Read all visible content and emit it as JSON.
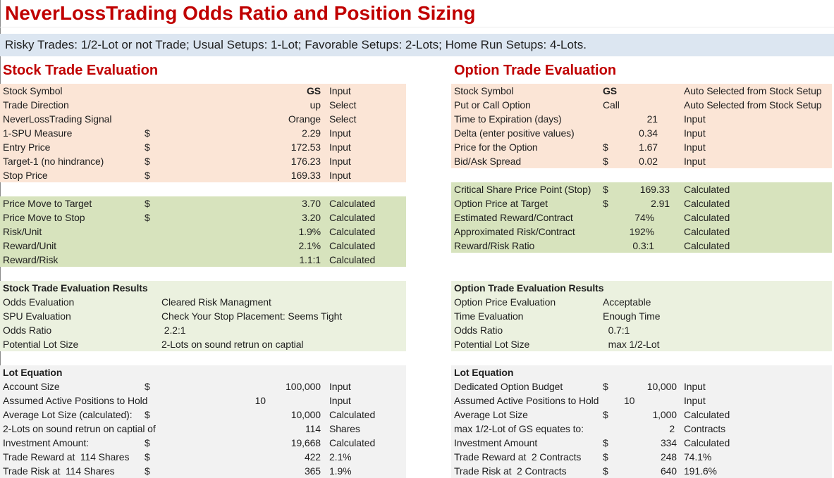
{
  "title": "NeverLossTrading Odds Ratio and Position Sizing",
  "subtitle": "Risky Trades: 1/2-Lot or not Trade; Usual Setups: 1-Lot; Favorable Setups: 2-Lots; Home Run Setups: 4-Lots.",
  "colors": {
    "accent_red": "#c00000",
    "subtitle_bar_bg": "#dce6f1",
    "input_block_bg": "#fbe5d6",
    "calculated_block_bg": "#d7e3bd",
    "results_block_bg": "#ebf1df",
    "lot_block_bg": "#f2f2f2",
    "text": "#1f1f1f"
  },
  "stock": {
    "header": "Stock Trade Evaluation",
    "inputs": {
      "rows": [
        {
          "label": "Stock Symbol",
          "value": "GS",
          "bold_value": true,
          "status": "Input"
        },
        {
          "label": "Trade Direction",
          "value": "up",
          "status": "Select"
        },
        {
          "label": "NeverLossTrading Signal",
          "value": "Orange",
          "status": "Select"
        },
        {
          "label": "1-SPU Measure",
          "mid": "$",
          "value": "2.29",
          "status": "Input"
        },
        {
          "label": "Entry Price",
          "mid": "$",
          "value": "172.53",
          "status": "Input"
        },
        {
          "label": "Target-1 (no hindrance)",
          "mid": "$",
          "value": "176.23",
          "status": "Input"
        },
        {
          "label": "Stop Price",
          "mid": "$",
          "value": "169.33",
          "status": "Input"
        }
      ]
    },
    "calculated": {
      "rows": [
        {
          "label": "Price Move to Target",
          "mid": "$",
          "value": "3.70",
          "status": "Calculated"
        },
        {
          "label": "Price Move to Stop",
          "mid": "$",
          "value": "3.20",
          "status": "Calculated"
        },
        {
          "label": "Risk/Unit",
          "value": "1.9%",
          "status": "Calculated"
        },
        {
          "label": "Reward/Unit",
          "value": "2.1%",
          "status": "Calculated"
        },
        {
          "label": "Reward/Risk",
          "value": "1.1:1",
          "status": "Calculated"
        }
      ]
    },
    "results": {
      "header": "Stock Trade Evaluation Results",
      "rows": [
        {
          "label": "Odds Evaluation",
          "value": "Cleared Risk Managment"
        },
        {
          "label": "SPU Evaluation",
          "value": "Check Your Stop Placement: Seems Tight"
        },
        {
          "label": "Odds Ratio",
          "value": " 2.2:1"
        },
        {
          "label": "Potential Lot Size",
          "value": "2-Lots on sound retrun on captial"
        }
      ]
    },
    "lot": {
      "header": "Lot Equation",
      "rows": [
        {
          "label": "Account Size",
          "mid": "$",
          "value": "100,000",
          "status": "Input"
        },
        {
          "label": "Assumed Active Positions to Hold",
          "value": "10",
          "status": "Input",
          "pad": 78
        },
        {
          "label": "Average Lot Size (calculated):",
          "mid": "$",
          "value": "10,000",
          "status": "Calculated"
        },
        {
          "label": "2-Lots on sound retrun on captial of",
          "value": "114",
          "status": "Shares"
        },
        {
          "label": "Investment Amount:",
          "mid": "$",
          "value": "19,668",
          "status": "Calculated"
        },
        {
          "label": "Trade Reward at  114 Shares",
          "mid": "$",
          "value": "422",
          "status": "2.1%"
        },
        {
          "label": "Trade Risk at  114 Shares",
          "mid": "$",
          "value": "365",
          "status": "1.9%"
        }
      ]
    }
  },
  "option": {
    "header": "Option Trade Evaluation",
    "inputs": {
      "rows": [
        {
          "label": "Stock Symbol",
          "mid": "GS",
          "bold_mid": true,
          "status": "Auto Selected from Stock Setup"
        },
        {
          "label": "Put or Call Option",
          "mid": "Call",
          "status": "Auto Selected from Stock Setup"
        },
        {
          "label": "Time to Expiration (days)",
          "value": "21",
          "status": "Input",
          "pad": 27
        },
        {
          "label": "Delta (enter positive values)",
          "value": "0.34",
          "status": "Input",
          "pad": 27
        },
        {
          "label": "Price for the Option",
          "mid": "$",
          "value": "1.67",
          "status": "Input",
          "pad": 27
        },
        {
          "label": "Bid/Ask Spread",
          "mid": "$",
          "value": "0.02",
          "status": "Input",
          "pad": 27
        }
      ]
    },
    "calculated": {
      "rows": [
        {
          "label": "Critical Share Price Point (Stop)",
          "mid": "$",
          "value": "169.33",
          "status": "Calculated",
          "pad": 10
        },
        {
          "label": "Option Price at Target",
          "mid": "$",
          "value": "2.91",
          "status": "Calculated",
          "pad": 10
        },
        {
          "label": "Estimated Reward/Contract",
          "value": "74%",
          "status": "Calculated",
          "pad": 32
        },
        {
          "label": "Approximated Risk/Contract",
          "value": "192%",
          "status": "Calculated",
          "pad": 32
        },
        {
          "label": "Reward/Risk Ratio",
          "value": "0.3:1",
          "status": "Calculated",
          "pad": 32
        }
      ]
    },
    "results": {
      "header": "Option Trade Evaluation Results",
      "rows": [
        {
          "label": "Option Price Evaluation",
          "value": "Acceptable"
        },
        {
          "label": "Time Evaluation",
          "value": "Enough Time"
        },
        {
          "label": "Odds Ratio",
          "value": "  0.7:1"
        },
        {
          "label": "Potential Lot Size",
          "value": "  max 1/2-Lot"
        }
      ]
    },
    "lot": {
      "header": "Lot Equation",
      "rows": [
        {
          "label": "Dedicated Option Budget",
          "mid": "$",
          "value": "10,000",
          "status": "Input"
        },
        {
          "label": "Assumed Active Positions to Hold",
          "value": "10",
          "status": "Input",
          "pad": 72
        },
        {
          "label": "Average Lot Size",
          "mid": "$",
          "value": "1,000",
          "status": "Calculated"
        },
        {
          "label": "max 1/2-Lot of GS equates to:",
          "value": "2",
          "status": "Contracts",
          "pad": 3
        },
        {
          "label": "Investment Amount",
          "mid": "$",
          "value": "334",
          "status": "Calculated"
        },
        {
          "label": "Trade Reward at  2 Contracts",
          "mid": "$",
          "value": "248",
          "status": "74.1%"
        },
        {
          "label": "Trade Risk at  2 Contracts",
          "mid": "$",
          "value": "640",
          "status": "191.6%"
        }
      ]
    }
  }
}
